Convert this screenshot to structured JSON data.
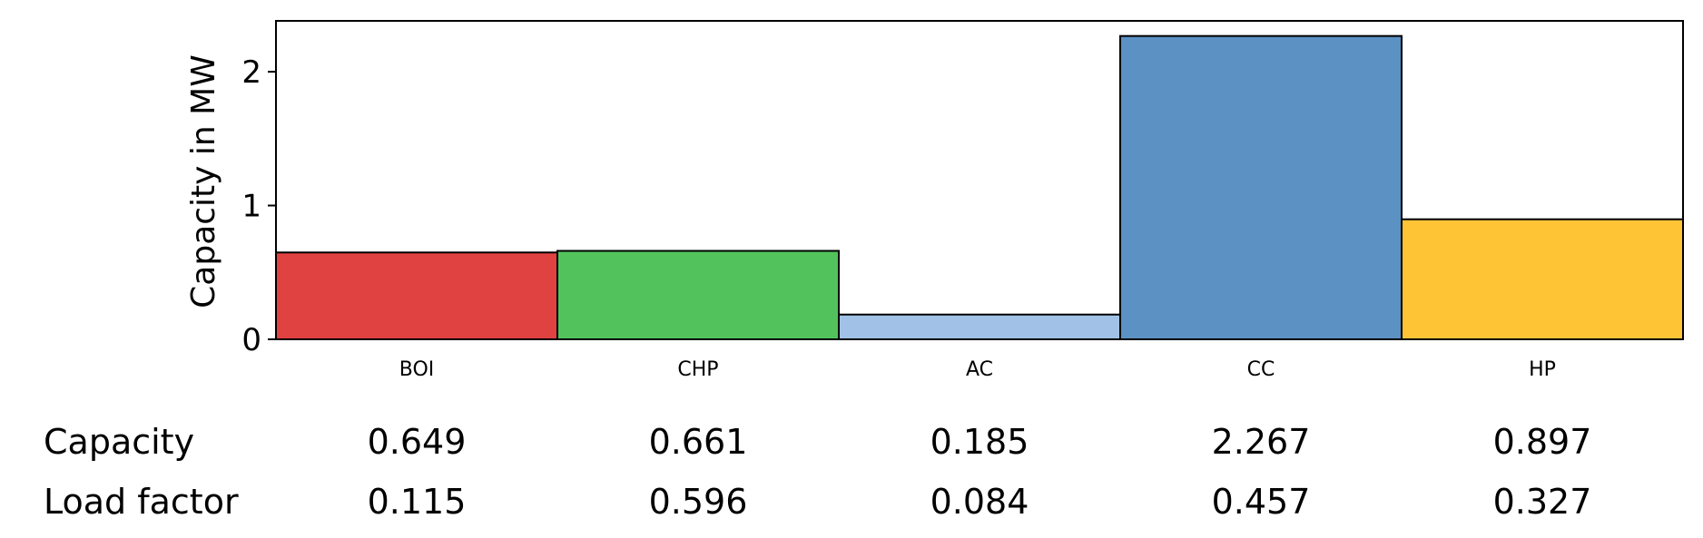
{
  "chart_data": {
    "type": "bar",
    "categories": [
      "BOI",
      "CHP",
      "AC",
      "CC",
      "HP"
    ],
    "values": [
      0.649,
      0.661,
      0.185,
      2.267,
      0.897
    ],
    "colors": [
      "#e04141",
      "#52c35c",
      "#a1c2e6",
      "#5b91c3",
      "#ffc436"
    ],
    "xlabel": "",
    "ylabel": "Capacity in MW",
    "ylim": [
      0,
      2.38
    ],
    "yticks": [
      0,
      1,
      2
    ],
    "grid": false
  },
  "table": {
    "rows": [
      {
        "label": "Capacity",
        "values": [
          "0.649",
          "0.661",
          "0.185",
          "2.267",
          "0.897"
        ]
      },
      {
        "label": "Load factor",
        "values": [
          "0.115",
          "0.596",
          "0.084",
          "0.457",
          "0.327"
        ]
      }
    ]
  }
}
